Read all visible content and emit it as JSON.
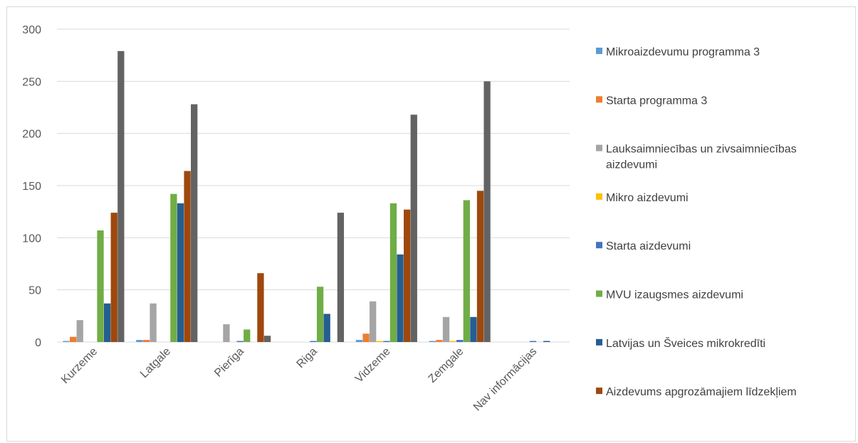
{
  "chart_data": {
    "type": "bar",
    "categories": [
      "Kurzeme",
      "Latgale",
      "Pierīga",
      "Riga",
      "Vidzeme",
      "Zemgale",
      "Nav informācijas"
    ],
    "series": [
      {
        "name": "Mikroaizdevumu programma 3",
        "color": "#5B9BD5",
        "values": [
          1,
          2,
          0,
          0,
          2,
          1,
          0
        ]
      },
      {
        "name": "Starta programma 3",
        "color": "#ED7D31",
        "values": [
          5,
          2,
          0,
          0,
          8,
          2,
          0
        ]
      },
      {
        "name": "Lauksaimniecības un zivsaimniecības aizdevumi",
        "color": "#A5A5A5",
        "values": [
          21,
          37,
          17,
          0,
          39,
          24,
          0
        ]
      },
      {
        "name": "Mikro aizdevumi",
        "color": "#FFC000",
        "values": [
          0,
          0,
          0,
          0,
          1,
          1,
          0
        ]
      },
      {
        "name": "Starta aizdevumi",
        "color": "#4472C4",
        "values": [
          0,
          0,
          1,
          1,
          1,
          2,
          1
        ]
      },
      {
        "name": "MVU izaugsmes aizdevumi",
        "color": "#70AD47",
        "values": [
          107,
          142,
          12,
          53,
          133,
          136,
          0
        ]
      },
      {
        "name": "Latvijas un Šveices mikrokredīti",
        "color": "#255E91",
        "values": [
          37,
          133,
          0,
          27,
          84,
          24,
          1
        ]
      },
      {
        "name": "Aizdevums apgrozāmajiem līdzekļiem",
        "color": "#9E480E",
        "values": [
          124,
          164,
          66,
          0,
          127,
          145,
          0
        ]
      },
      {
        "name": "",
        "color": "#636363",
        "values": [
          279,
          228,
          6,
          124,
          218,
          250,
          0
        ]
      }
    ],
    "legend_lines": [
      [
        "Mikroaizdevumu programma 3"
      ],
      [
        "Starta programma 3"
      ],
      [
        "Lauksaimniecības un zivsaimniecības",
        "aizdevumi"
      ],
      [
        "Mikro aizdevumi"
      ],
      [
        "Starta aizdevumi"
      ],
      [
        "MVU izaugsmes aizdevumi"
      ],
      [
        "Latvijas un Šveices mikrokredīti"
      ],
      [
        "Aizdevums apgrozāmajiem līdzekļiem"
      ]
    ],
    "y_ticks": [
      "0",
      "50",
      "100",
      "150",
      "200",
      "250",
      "300"
    ],
    "ylim": [
      0,
      300
    ],
    "grid": true,
    "legend_position": "right"
  }
}
